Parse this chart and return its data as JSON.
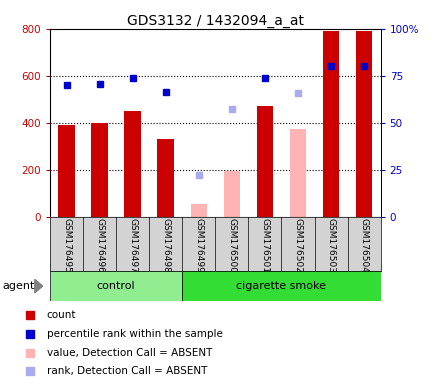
{
  "title": "GDS3132 / 1432094_a_at",
  "samples": [
    "GSM176495",
    "GSM176496",
    "GSM176497",
    "GSM176498",
    "GSM176499",
    "GSM176500",
    "GSM176501",
    "GSM176502",
    "GSM176503",
    "GSM176504"
  ],
  "groups": [
    "control",
    "control",
    "control",
    "control",
    "cigarette smoke",
    "cigarette smoke",
    "cigarette smoke",
    "cigarette smoke",
    "cigarette smoke",
    "cigarette smoke"
  ],
  "count_values": [
    390,
    400,
    450,
    330,
    null,
    null,
    470,
    null,
    790,
    790
  ],
  "value_absent": [
    null,
    null,
    null,
    null,
    55,
    195,
    null,
    375,
    null,
    null
  ],
  "percentile_values": [
    560,
    565,
    590,
    530,
    null,
    null,
    590,
    null,
    640,
    640
  ],
  "rank_absent": [
    null,
    null,
    null,
    null,
    180,
    460,
    null,
    525,
    null,
    null
  ],
  "ylim_left": [
    0,
    800
  ],
  "yticks_left": [
    0,
    200,
    400,
    600,
    800
  ],
  "yticks_right": [
    0,
    25,
    50,
    75,
    100
  ],
  "ytick_labels_right": [
    "0",
    "25",
    "50",
    "75",
    "100%"
  ],
  "count_color": "#cc0000",
  "absent_bar_color": "#ffb3b3",
  "percentile_color": "#0000cc",
  "absent_dot_color": "#aaaaee",
  "bg_color": "#d3d3d3",
  "control_color": "#90ee90",
  "smoke_color": "#33dd33",
  "agent_label": "agent",
  "control_label": "control",
  "smoke_label": "cigarette smoke",
  "legend_items": [
    {
      "color": "#cc0000",
      "label": "count"
    },
    {
      "color": "#0000cc",
      "label": "percentile rank within the sample"
    },
    {
      "color": "#ffb3b3",
      "label": "value, Detection Call = ABSENT"
    },
    {
      "color": "#aaaaee",
      "label": "rank, Detection Call = ABSENT"
    }
  ]
}
